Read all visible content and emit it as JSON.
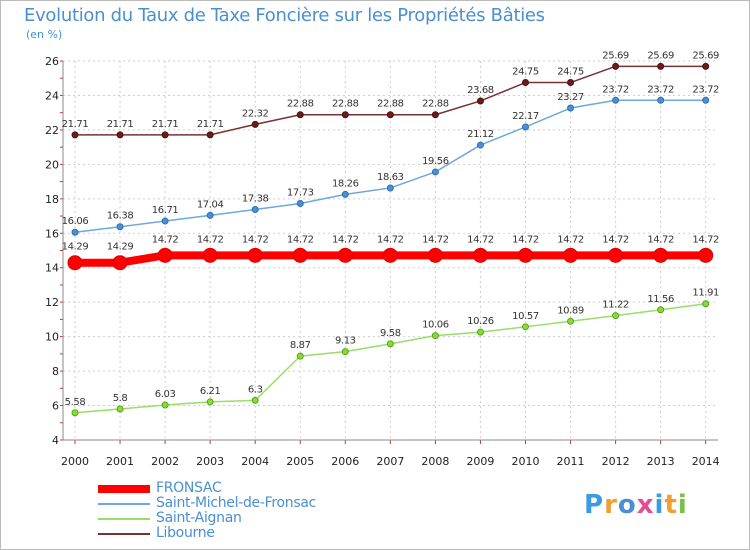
{
  "title": "Evolution du Taux de Taxe Foncière sur les Propriétés Bâties",
  "unit": "(en %)",
  "logo": {
    "text": "Proxiti",
    "colors": [
      "#3a9be0",
      "#f0a030",
      "#4a8fd0",
      "#e05090",
      "#3a9be0",
      "#f0a030",
      "#7ac143"
    ]
  },
  "chart_data": {
    "type": "line",
    "title": "Evolution du Taux de Taxe Foncière sur les Propriétés Bâties",
    "ylabel": "(en %)",
    "xlabel": "",
    "ylim": [
      4,
      26
    ],
    "yticks": [
      4,
      6,
      8,
      10,
      12,
      14,
      16,
      18,
      20,
      22,
      24,
      26
    ],
    "grid": true,
    "legend_position": "bottom-left",
    "categories": [
      "2000",
      "2001",
      "2002",
      "2003",
      "2004",
      "2005",
      "2006",
      "2007",
      "2008",
      "2009",
      "2010",
      "2011",
      "2012",
      "2013",
      "2014"
    ],
    "series": [
      {
        "name": "FRONSAC",
        "color": "#ff0000",
        "values": [
          14.29,
          14.29,
          14.72,
          14.72,
          14.72,
          14.72,
          14.72,
          14.72,
          14.72,
          14.72,
          14.72,
          14.72,
          14.72,
          14.72,
          14.72
        ],
        "labels": [
          "14.29",
          "14.29",
          "14.72",
          "14.72",
          "14.72",
          "14.72",
          "14.72",
          "14.72",
          "14.72",
          "14.72",
          "14.72",
          "14.72",
          "14.72",
          "14.72",
          "14.72"
        ]
      },
      {
        "name": "Saint-Michel-de-Fronsac",
        "color": "#6fa8dc",
        "values": [
          16.06,
          16.38,
          16.71,
          17.04,
          17.38,
          17.73,
          18.26,
          18.63,
          19.56,
          21.12,
          22.17,
          23.27,
          23.72,
          23.72,
          23.72
        ],
        "labels": [
          "16.06",
          "16.38",
          "16.71",
          "17.04",
          "17.38",
          "17.73",
          "18.26",
          "18.63",
          "19.56",
          "21.12",
          "22.17",
          "23.27",
          "23.72",
          "23.72",
          "23.72"
        ]
      },
      {
        "name": "Saint-Aignan",
        "color": "#99dd66",
        "values": [
          5.58,
          5.8,
          6.03,
          6.21,
          6.3,
          8.87,
          9.13,
          9.58,
          10.06,
          10.26,
          10.57,
          10.89,
          11.22,
          11.56,
          11.91
        ],
        "labels": [
          "5.58",
          "5.8",
          "6.03",
          "6.21",
          "6.3",
          "8.87",
          "9.13",
          "9.58",
          "10.06",
          "10.26",
          "10.57",
          "10.89",
          "11.22",
          "11.56",
          "11.91"
        ]
      },
      {
        "name": "Libourne",
        "color": "#7a3030",
        "values": [
          21.71,
          21.71,
          21.71,
          21.71,
          22.32,
          22.88,
          22.88,
          22.88,
          22.88,
          23.68,
          24.75,
          24.75,
          25.69,
          25.69,
          25.69
        ],
        "labels": [
          "21.71",
          "21.71",
          "21.71",
          "21.71",
          "22.32",
          "22.88",
          "22.88",
          "22.88",
          "22.88",
          "23.68",
          "24.75",
          "24.75",
          "25.69",
          "25.69",
          "25.69"
        ]
      }
    ]
  }
}
